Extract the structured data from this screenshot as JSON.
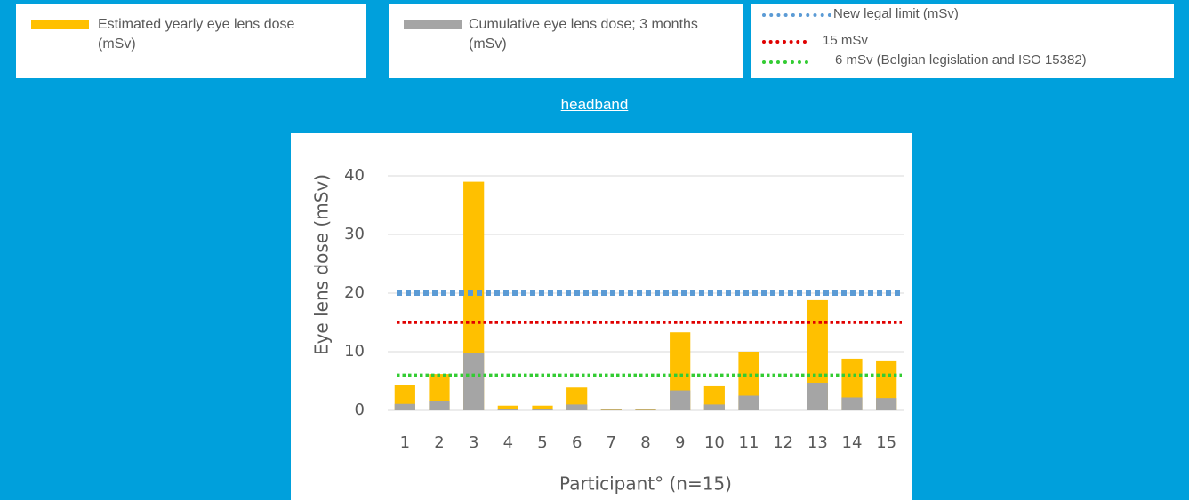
{
  "chart_data": {
    "type": "bar",
    "title": "headband",
    "x_label": "Participant° (n=15)",
    "y_label": "Eye lens dose (mSv)",
    "categories": [
      "1",
      "2",
      "3",
      "4",
      "5",
      "6",
      "7",
      "8",
      "9",
      "10",
      "11",
      "12",
      "13",
      "14",
      "15"
    ],
    "series": [
      {
        "name": "Estimated yearly eye lens dose (mSv)",
        "color": "#ffc000",
        "values": [
          4.3,
          6.2,
          39,
          0.8,
          0.8,
          3.9,
          0.3,
          0.3,
          13.3,
          4.1,
          10,
          0,
          18.8,
          8.8,
          8.5
        ]
      },
      {
        "name": "Cumulative eye lens dose; 3 months (mSv)",
        "color": "#a5a5a5",
        "values": [
          1.1,
          1.6,
          9.8,
          0.2,
          0.2,
          1.0,
          0.1,
          0.1,
          3.4,
          1.0,
          2.5,
          0,
          4.7,
          2.2,
          2.1
        ]
      }
    ],
    "reference_lines": [
      {
        "name": "New legal limit (mSv)",
        "value": 20,
        "color": "#5b9bd5"
      },
      {
        "name": "15 mSv",
        "value": 15,
        "color": "#e00000"
      },
      {
        "name": "6 mSv (Belgian legislation and ISO 15382)",
        "value": 6,
        "color": "#33cc33"
      }
    ],
    "ylim": [
      0,
      45
    ],
    "yticks": [
      0,
      10,
      20,
      30,
      40
    ],
    "grid": true
  }
}
